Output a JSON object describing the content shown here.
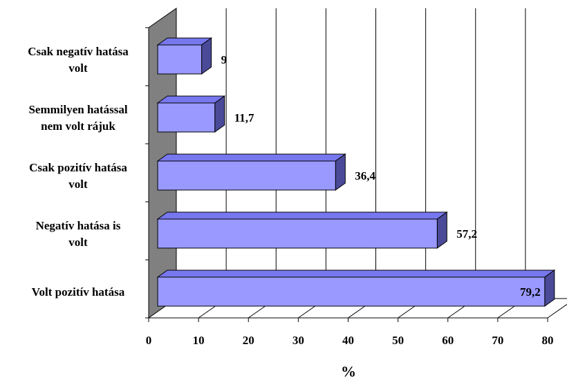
{
  "chart_data": {
    "type": "bar",
    "orientation": "horizontal",
    "three_d": true,
    "categories": [
      "Volt pozitív hatása",
      "Negatív hatása is volt",
      "Csak pozitív hatása volt",
      "Semmilyen hatással nem volt rájuk",
      "Csak negatív hatása volt"
    ],
    "category_label_lines": [
      [
        "Volt pozitív hatása"
      ],
      [
        "Negatív hatása is",
        "volt"
      ],
      [
        "Csak pozitív hatása",
        "volt"
      ],
      [
        "Semmilyen hatással",
        "nem volt rájuk"
      ],
      [
        "Csak negatív hatása",
        "volt"
      ]
    ],
    "values": [
      79.2,
      57.2,
      36.4,
      11.7,
      9
    ],
    "value_labels": [
      "79,2",
      "57,2",
      "36,4",
      "11,7",
      "9"
    ],
    "xlabel": "%",
    "xlim": [
      0,
      80
    ],
    "xticks": [
      0,
      10,
      20,
      30,
      40,
      50,
      60,
      70,
      80
    ],
    "grid": true,
    "legend": "none",
    "colors": {
      "bar_front": "#9999ff",
      "bar_top": "#7777ee",
      "bar_side": "#4a4a99",
      "wall": "#808080",
      "grid": "#000000"
    }
  }
}
